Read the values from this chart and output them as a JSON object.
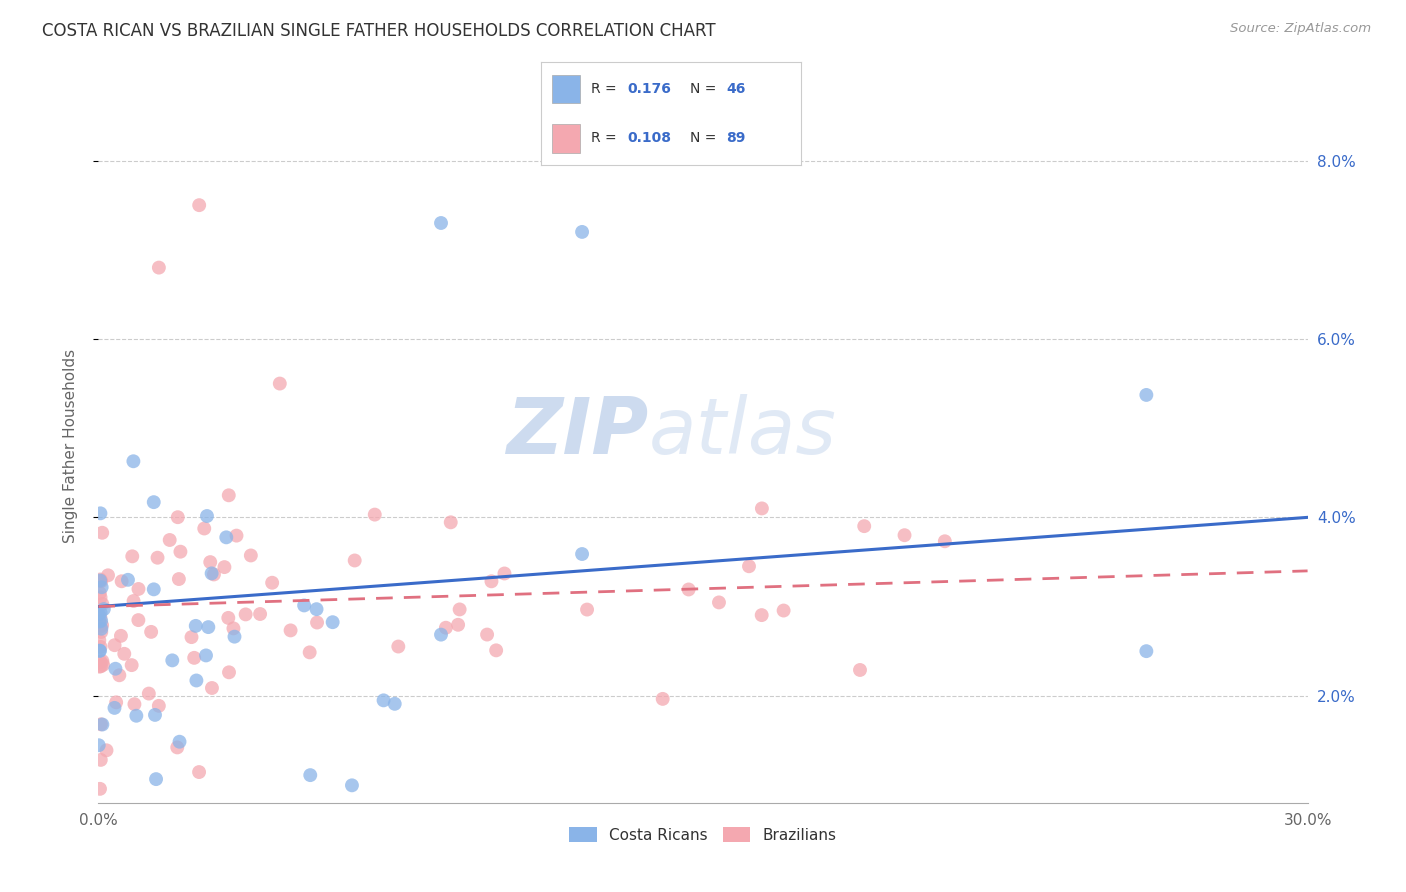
{
  "title": "COSTA RICAN VS BRAZILIAN SINGLE FATHER HOUSEHOLDS CORRELATION CHART",
  "source": "Source: ZipAtlas.com",
  "xlim": [
    0.0,
    0.3
  ],
  "ylim": [
    0.008,
    0.088
  ],
  "ylabel": "Single Father Households",
  "color_blue": "#8ab4e8",
  "color_pink": "#f4a8b0",
  "color_blue_line": "#3a6bc9",
  "color_pink_line": "#e07080",
  "color_blue_text": "#3a6bc9",
  "watermark_color": "#c8d8ee",
  "background_color": "#ffffff",
  "ytick_vals": [
    0.02,
    0.04,
    0.06,
    0.08
  ],
  "ytick_labels": [
    "2.0%",
    "4.0%",
    "6.0%",
    "8.0%"
  ],
  "xtick_vals": [
    0.0,
    0.05,
    0.1,
    0.15,
    0.2,
    0.25,
    0.3
  ],
  "xtick_labels_show": [
    "0.0%",
    "",
    "",
    "",
    "",
    "",
    "30.0%"
  ]
}
